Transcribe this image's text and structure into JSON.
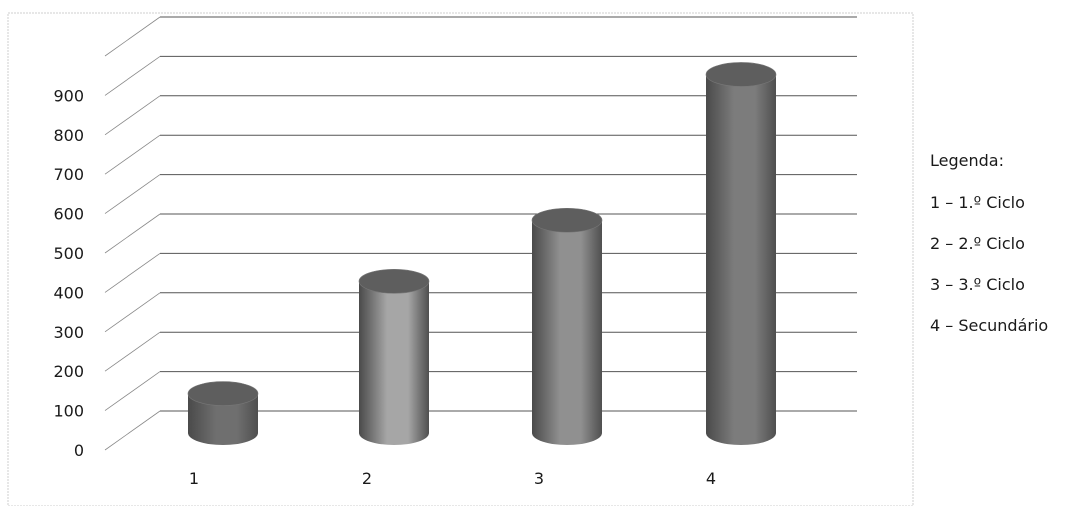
{
  "chart_data": {
    "type": "bar",
    "categories": [
      "1",
      "2",
      "3",
      "4"
    ],
    "values": [
      100,
      385,
      540,
      910
    ],
    "title": "",
    "xlabel": "",
    "ylabel": "",
    "ylim": [
      0,
      1000
    ],
    "yticks": [
      0,
      100,
      200,
      300,
      400,
      500,
      600,
      700,
      800,
      900
    ],
    "grid": true,
    "bar_style": "3d-cylinder",
    "bar_colors": [
      "#6f6f6f",
      "#a6a6a6",
      "#909090",
      "#7c7c7c"
    ],
    "legend_position": "right"
  },
  "legend": {
    "title": "Legenda:",
    "items": [
      {
        "label": "1 – 1.º Ciclo"
      },
      {
        "label": "2 – 2.º Ciclo"
      },
      {
        "label": "3 – 3.º Ciclo"
      },
      {
        "label": "4 – Secundário"
      }
    ]
  }
}
